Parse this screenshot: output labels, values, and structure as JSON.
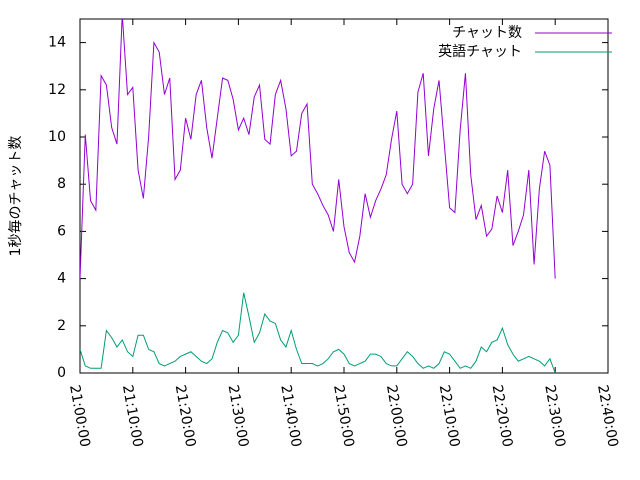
{
  "chart_data": {
    "type": "line",
    "ylabel": "1秒毎のチャット数",
    "x": [
      "21:00:00",
      "21:01:00",
      "21:02:00",
      "21:03:00",
      "21:04:00",
      "21:05:00",
      "21:06:00",
      "21:07:00",
      "21:08:00",
      "21:09:00",
      "21:10:00",
      "21:11:00",
      "21:12:00",
      "21:13:00",
      "21:14:00",
      "21:15:00",
      "21:16:00",
      "21:17:00",
      "21:18:00",
      "21:19:00",
      "21:20:00",
      "21:21:00",
      "21:22:00",
      "21:23:00",
      "21:24:00",
      "21:25:00",
      "21:26:00",
      "21:27:00",
      "21:28:00",
      "21:29:00",
      "21:30:00",
      "21:31:00",
      "21:32:00",
      "21:33:00",
      "21:34:00",
      "21:35:00",
      "21:36:00",
      "21:37:00",
      "21:38:00",
      "21:39:00",
      "21:40:00",
      "21:41:00",
      "21:42:00",
      "21:43:00",
      "21:44:00",
      "21:45:00",
      "21:46:00",
      "21:47:00",
      "21:48:00",
      "21:49:00",
      "21:50:00",
      "21:51:00",
      "21:52:00",
      "21:53:00",
      "21:54:00",
      "21:55:00",
      "21:56:00",
      "21:57:00",
      "21:58:00",
      "21:59:00",
      "22:00:00",
      "22:01:00",
      "22:02:00",
      "22:03:00",
      "22:04:00",
      "22:05:00",
      "22:06:00",
      "22:07:00",
      "22:08:00",
      "22:09:00",
      "22:10:00",
      "22:11:00",
      "22:12:00",
      "22:13:00",
      "22:14:00",
      "22:15:00",
      "22:16:00",
      "22:17:00",
      "22:18:00",
      "22:19:00",
      "22:20:00",
      "22:21:00",
      "22:22:00",
      "22:23:00",
      "22:24:00",
      "22:25:00",
      "22:26:00",
      "22:27:00",
      "22:28:00",
      "22:29:00",
      "22:30:00"
    ],
    "series": [
      {
        "name": "チャット数",
        "color": "#9400d3",
        "values": [
          4.0,
          10.1,
          7.3,
          6.9,
          12.6,
          12.2,
          10.4,
          9.7,
          15.2,
          11.8,
          12.1,
          8.6,
          7.4,
          10,
          14,
          13.6,
          11.8,
          12.5,
          8.2,
          8.6,
          10.8,
          9.9,
          11.8,
          12.4,
          10.4,
          9.1,
          10.8,
          12.5,
          12.4,
          11.6,
          10.3,
          10.8,
          10.1,
          11.7,
          12.2,
          9.9,
          9.7,
          11.8,
          12.4,
          11.2,
          9.2,
          9.4,
          11,
          11.4,
          8.0,
          7.6,
          7.1,
          6.7,
          6.0,
          8.2,
          6.2,
          5.1,
          4.7,
          5.8,
          7.6,
          6.6,
          7.3,
          7.8,
          8.4,
          9.9,
          11.1,
          8.0,
          7.6,
          8.0,
          11.9,
          12.7,
          9.2,
          11.2,
          12.4,
          9.7,
          7.0,
          6.8,
          10.3,
          12.7,
          8.4,
          6.5,
          7.1,
          5.8,
          6.1,
          7.5,
          6.8,
          8.6,
          5.4,
          6,
          6.7,
          8.6,
          4.6,
          7.8,
          9.4,
          8.8,
          4.0
        ]
      },
      {
        "name": "英語チャット",
        "color": "#009e73",
        "values": [
          1.0,
          0.3,
          0.2,
          0.2,
          0.2,
          1.8,
          1.5,
          1.1,
          1.4,
          0.9,
          0.7,
          1.6,
          1.6,
          1.0,
          0.9,
          0.4,
          0.3,
          0.4,
          0.5,
          0.7,
          0.8,
          0.9,
          0.7,
          0.5,
          0.4,
          0.6,
          1.3,
          1.8,
          1.7,
          1.3,
          1.6,
          3.4,
          2.4,
          1.3,
          1.7,
          2.5,
          2.2,
          2.1,
          1.4,
          1.1,
          1.8,
          1.0,
          0.4,
          0.4,
          0.4,
          0.3,
          0.4,
          0.6,
          0.9,
          1.0,
          0.8,
          0.4,
          0.3,
          0.4,
          0.5,
          0.8,
          0.8,
          0.7,
          0.4,
          0.3,
          0.3,
          0.6,
          0.9,
          0.7,
          0.4,
          0.2,
          0.3,
          0.2,
          0.4,
          0.9,
          0.8,
          0.5,
          0.2,
          0.3,
          0.2,
          0.5,
          1.1,
          0.9,
          1.3,
          1.4,
          1.9,
          1.2,
          0.8,
          0.5,
          0.6,
          0.7,
          0.6,
          0.5,
          0.3,
          0.6,
          0.0
        ]
      }
    ],
    "xlim": [
      "21:00:00",
      "22:40:00"
    ],
    "xticks": [
      "21:00:00",
      "21:10:00",
      "21:20:00",
      "21:30:00",
      "21:40:00",
      "21:50:00",
      "22:00:00",
      "22:10:00",
      "22:20:00",
      "22:30:00",
      "22:40:00"
    ],
    "ylim": [
      0,
      15
    ],
    "yticks": [
      0,
      2,
      4,
      6,
      8,
      10,
      12,
      14
    ],
    "legend": "top-right"
  }
}
